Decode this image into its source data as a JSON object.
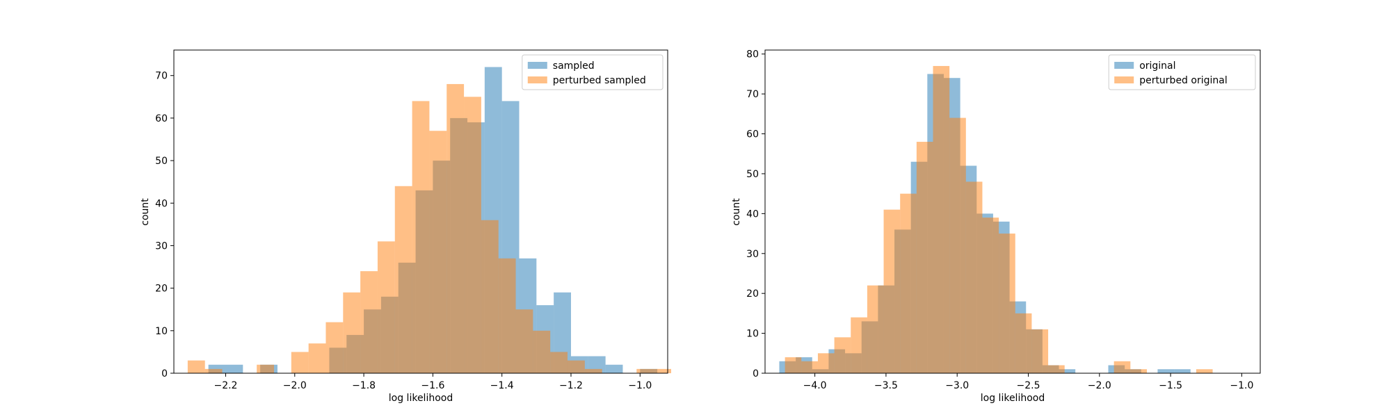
{
  "chart_data": [
    {
      "type": "histogram",
      "xlabel": "log likelihood",
      "ylabel": "count",
      "xlim": [
        -2.35,
        -0.92
      ],
      "ylim": [
        0,
        76
      ],
      "xticks": [
        -2.2,
        -2.0,
        -1.8,
        -1.6,
        -1.4,
        -1.2,
        -1.0
      ],
      "xtick_labels": [
        "−2.2",
        "−2.0",
        "−1.8",
        "−1.6",
        "−1.4",
        "−1.2",
        "−1.0"
      ],
      "yticks": [
        0,
        10,
        20,
        30,
        40,
        50,
        60,
        70
      ],
      "ytick_labels": [
        "0",
        "10",
        "20",
        "30",
        "40",
        "50",
        "60",
        "70"
      ],
      "legend_position": "top-right",
      "series": [
        {
          "name": "sampled",
          "color": "#1f77b4",
          "bin_start": -2.25,
          "bin_width": 0.05,
          "counts": [
            2,
            2,
            0,
            2,
            0,
            0,
            0,
            6,
            9,
            15,
            18,
            26,
            43,
            50,
            60,
            59,
            72,
            64,
            27,
            16,
            19,
            4,
            4,
            2,
            0,
            1
          ]
        },
        {
          "name": "perturbed sampled",
          "color": "#ff7f0e",
          "bin_start": -2.31,
          "bin_width": 0.05,
          "counts": [
            3,
            1,
            0,
            0,
            2,
            0,
            5,
            7,
            12,
            19,
            24,
            31,
            44,
            64,
            57,
            68,
            65,
            36,
            27,
            15,
            10,
            5,
            3,
            1,
            0,
            0,
            1,
            1
          ]
        }
      ]
    },
    {
      "type": "histogram",
      "xlabel": "log likelihood",
      "ylabel": "count",
      "xlim": [
        -4.35,
        -0.87
      ],
      "ylim": [
        0,
        81
      ],
      "xticks": [
        -4.0,
        -3.5,
        -3.0,
        -2.5,
        -2.0,
        -1.5,
        -1.0
      ],
      "xtick_labels": [
        "−4.0",
        "−3.5",
        "−3.0",
        "−2.5",
        "−2.0",
        "−1.5",
        "−1.0"
      ],
      "yticks": [
        0,
        10,
        20,
        30,
        40,
        50,
        60,
        70,
        80
      ],
      "ytick_labels": [
        "0",
        "10",
        "20",
        "30",
        "40",
        "50",
        "60",
        "70",
        "80"
      ],
      "legend_position": "top-right",
      "series": [
        {
          "name": "original",
          "color": "#1f77b4",
          "bin_start": -4.25,
          "bin_width": 0.1156,
          "counts": [
            3,
            4,
            1,
            6,
            5,
            13,
            22,
            36,
            53,
            75,
            74,
            52,
            40,
            38,
            18,
            11,
            2,
            1,
            0,
            0,
            2,
            1,
            0,
            1,
            1
          ]
        },
        {
          "name": "perturbed original",
          "color": "#ff7f0e",
          "bin_start": -4.21,
          "bin_width": 0.1156,
          "counts": [
            4,
            3,
            5,
            9,
            14,
            22,
            41,
            45,
            58,
            77,
            64,
            48,
            39,
            35,
            15,
            11,
            2,
            0,
            0,
            0,
            3,
            1,
            0,
            0,
            0,
            1
          ]
        }
      ]
    }
  ]
}
